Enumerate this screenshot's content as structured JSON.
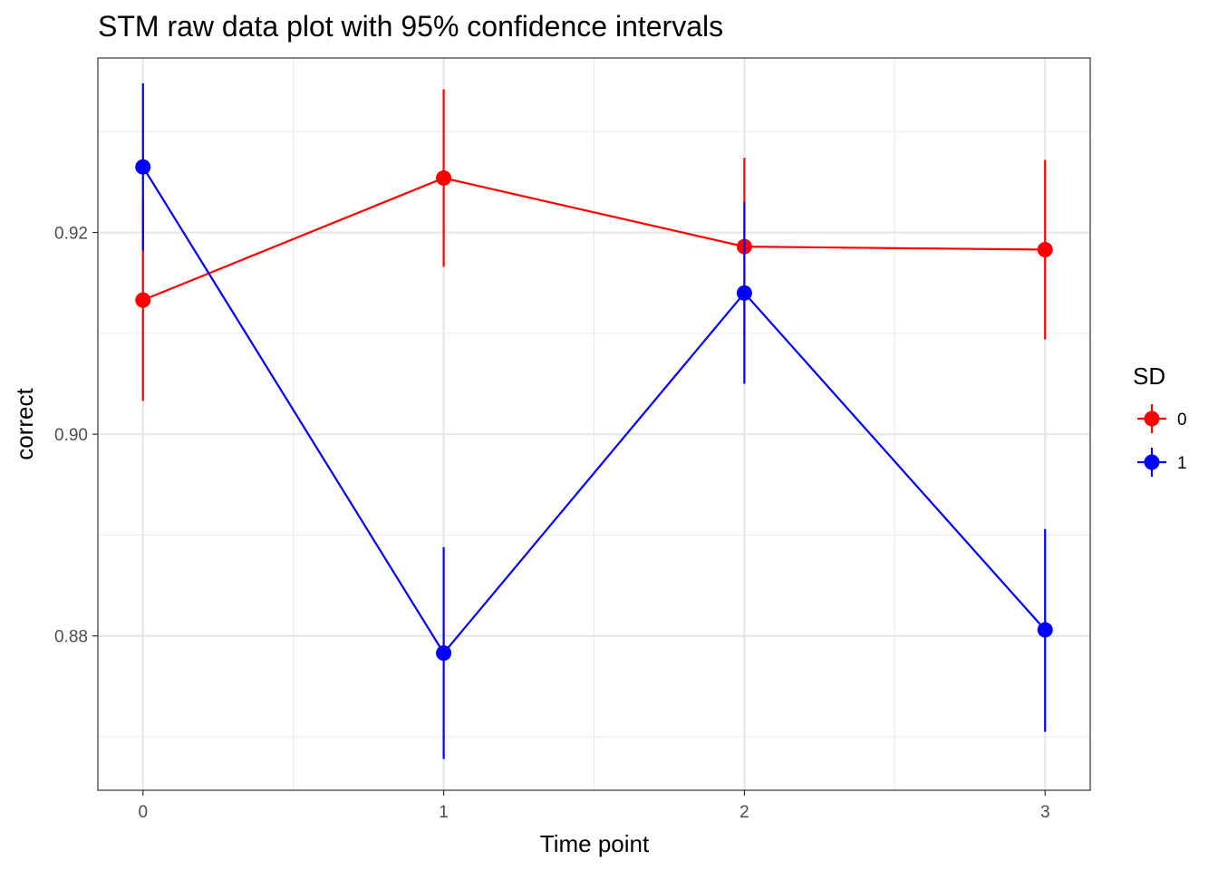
{
  "chart_data": {
    "type": "line",
    "title": "STM raw data plot with 95% confidence intervals",
    "xlabel": "Time point",
    "ylabel": "correct",
    "x": [
      0,
      1,
      2,
      3
    ],
    "x_tick_labels": [
      "0",
      "1",
      "2",
      "3"
    ],
    "xlim": [
      -0.15,
      3.15
    ],
    "ylim": [
      0.8647,
      0.9373
    ],
    "y_ticks": [
      0.88,
      0.9,
      0.92
    ],
    "y_tick_labels": [
      "0.88",
      "0.90",
      "0.92"
    ],
    "grid": true,
    "legend": {
      "title": "SD",
      "placement": "right"
    },
    "series": [
      {
        "name": "0",
        "color": "#ff0000",
        "values": [
          0.9133,
          0.9254,
          0.9186,
          0.9183
        ],
        "ci_lower": [
          0.9033,
          0.9166,
          0.9098,
          0.9094
        ],
        "ci_upper": [
          0.9233,
          0.9342,
          0.9274,
          0.9272
        ]
      },
      {
        "name": "1",
        "color": "#0000ff",
        "values": [
          0.9265,
          0.8783,
          0.914,
          0.8806
        ],
        "ci_lower": [
          0.9182,
          0.8678,
          0.905,
          0.8705
        ],
        "ci_upper": [
          0.9348,
          0.8888,
          0.923,
          0.8906
        ]
      }
    ]
  }
}
